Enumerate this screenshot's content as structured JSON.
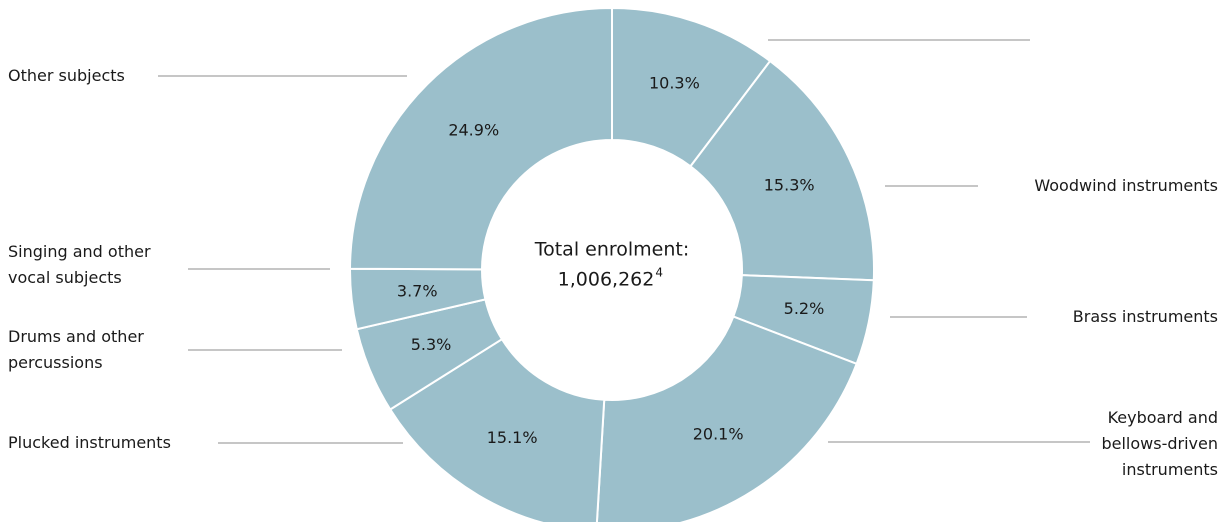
{
  "chart_data": {
    "type": "donut",
    "categories": [
      null,
      "Woodwind instruments",
      "Brass instruments",
      "Keyboard and\nbellows-driven\ninstruments",
      "Plucked instruments",
      "Drums and other\npercussions",
      "Singing and other\nvocal subjects",
      "Other subjects"
    ],
    "values": [
      10.3,
      15.3,
      5.2,
      20.1,
      15.1,
      5.3,
      3.7,
      24.9
    ],
    "value_labels": [
      "10.3%",
      "15.3%",
      "5.2%",
      "20.1%",
      "15.1%",
      "5.3%",
      "3.7%",
      "24.9%"
    ],
    "color": "#9bbfcb",
    "center_text": [
      "Total enrolment:",
      "1,006,262"
    ],
    "footnote_mark": "4"
  }
}
